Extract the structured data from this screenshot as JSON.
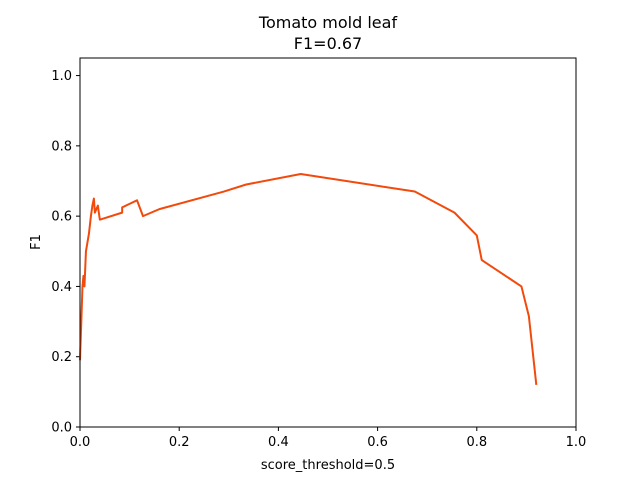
{
  "chart_data": {
    "type": "line",
    "title": "Tomato mold leaf",
    "subtitle": "F1=0.67",
    "xlabel": "score_threshold=0.5",
    "ylabel": "F1",
    "xlim": [
      0.0,
      1.0
    ],
    "ylim": [
      0.0,
      1.05
    ],
    "xticks": [
      "0.0",
      "0.2",
      "0.4",
      "0.6",
      "0.8",
      "1.0"
    ],
    "yticks": [
      "0.0",
      "0.2",
      "0.4",
      "0.6",
      "0.8",
      "1.0"
    ],
    "grid": false,
    "color": "#f24a0c",
    "series": [
      {
        "x": [
          0.0,
          0.005,
          0.007,
          0.009,
          0.012,
          0.018,
          0.022,
          0.025,
          0.028,
          0.03,
          0.033,
          0.036,
          0.04,
          0.085,
          0.085,
          0.115,
          0.127,
          0.16,
          0.29,
          0.335,
          0.445,
          0.675,
          0.755,
          0.8,
          0.81,
          0.89,
          0.905,
          0.92
        ],
        "y": [
          0.19,
          0.4,
          0.43,
          0.4,
          0.5,
          0.55,
          0.6,
          0.63,
          0.65,
          0.61,
          0.62,
          0.63,
          0.59,
          0.61,
          0.625,
          0.645,
          0.6,
          0.62,
          0.67,
          0.69,
          0.72,
          0.67,
          0.61,
          0.545,
          0.475,
          0.4,
          0.315,
          0.12
        ]
      }
    ]
  }
}
